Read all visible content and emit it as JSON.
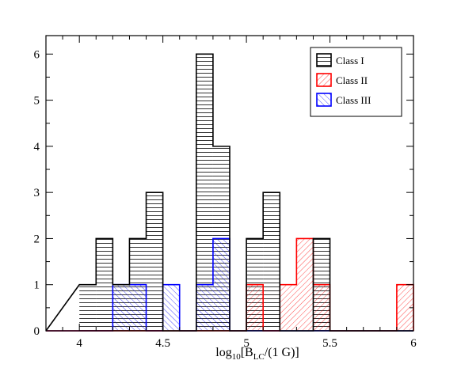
{
  "chart_data": {
    "type": "bar",
    "title": "",
    "xlabel": {
      "prefix": "log",
      "sub1": "10",
      "mid": "[B",
      "sub2": "LC",
      "suffix": "/(1 G)]"
    },
    "ylabel": "",
    "xlim": [
      3.8,
      6
    ],
    "ylim": [
      0,
      6.4
    ],
    "xticks": [
      4,
      4.5,
      5,
      5.5,
      6
    ],
    "xtick_labels": [
      "4",
      "4.5",
      "5",
      "5.5",
      "6"
    ],
    "yticks": [
      0,
      1,
      2,
      3,
      4,
      5,
      6
    ],
    "ytick_labels": [
      "0",
      "1",
      "2",
      "3",
      "4",
      "5",
      "6"
    ],
    "grid": false,
    "legend_position": "top-right",
    "bin_width": 0.1,
    "bin_starts": [
      4.0,
      4.1,
      4.2,
      4.3,
      4.4,
      4.5,
      4.6,
      4.7,
      4.8,
      4.9,
      5.0,
      5.1,
      5.2,
      5.3,
      5.4,
      5.5,
      5.6,
      5.7,
      5.8,
      5.9
    ],
    "series": [
      {
        "name": "Class I",
        "color": "#000000",
        "hatch": "horizontal",
        "values": [
          1,
          2,
          1,
          2,
          3,
          0,
          0,
          6,
          4,
          0,
          2,
          3,
          0,
          0,
          2,
          0,
          0,
          0,
          0,
          0
        ]
      },
      {
        "name": "Class II",
        "color": "#ff0000",
        "hatch": "diagonal-down",
        "values": [
          0,
          0,
          0,
          0,
          0,
          0,
          0,
          0,
          0,
          0,
          1,
          0,
          1,
          2,
          1,
          0,
          0,
          0,
          0,
          1
        ]
      },
      {
        "name": "Class III",
        "color": "#0000ff",
        "hatch": "diagonal-up",
        "values": [
          0,
          0,
          1,
          1,
          0,
          1,
          0,
          1,
          2,
          0,
          0,
          0,
          0,
          0,
          0,
          0,
          0,
          0,
          0,
          0
        ]
      }
    ]
  }
}
